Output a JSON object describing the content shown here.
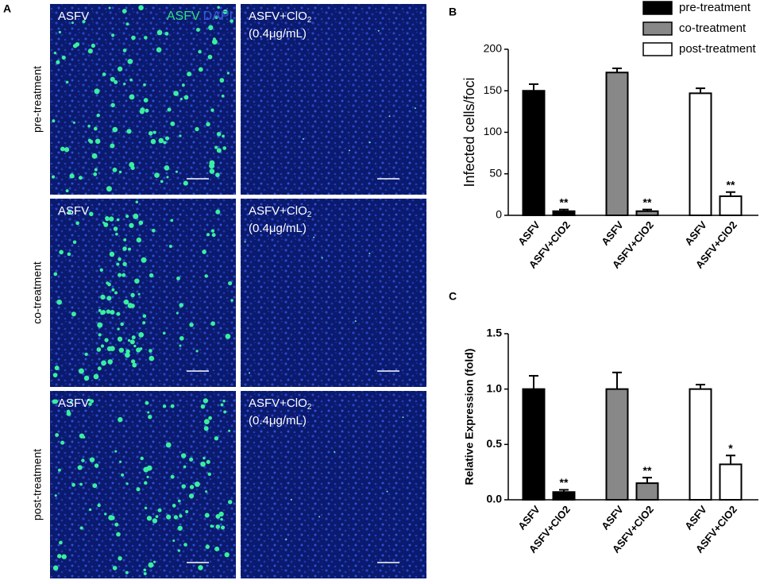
{
  "panel_a": {
    "label": "A",
    "stain_legend": [
      {
        "text": "ASFV",
        "color": "#2ee07a"
      },
      {
        "text": "DAPI",
        "color": "#3a5ad8"
      }
    ],
    "rows": [
      "pre-treatment",
      "co-treatment",
      "post-treatment"
    ],
    "images": [
      {
        "label": "ASFV",
        "infected": true
      },
      {
        "label": {
          "text": "ASFV+ClO",
          "subscript": "2"
        },
        "concentration": "(0.4μg/mL)",
        "infected": false
      },
      {
        "label": "ASFV",
        "infected": true
      },
      {
        "label": {
          "text": "ASFV+ClO",
          "subscript": "2"
        },
        "concentration": "(0.4μg/mL)",
        "infected": false
      },
      {
        "label": "ASFV",
        "infected": true
      },
      {
        "label": {
          "text": "ASFV+ClO",
          "subscript": "2"
        },
        "concentration": "(0.4μg/mL)",
        "infected": false
      }
    ]
  },
  "chart_data": [
    {
      "type": "bar",
      "panel_label": "B",
      "y_label": "Infected cells/foci",
      "categories": [
        "ASFV",
        "ASFV+ClO2"
      ],
      "series": [
        {
          "name": "pre-treatment",
          "color": "#000000",
          "values": [
            150,
            5
          ],
          "errors": [
            8,
            2
          ],
          "significance": [
            null,
            "**"
          ]
        },
        {
          "name": "co-treatment",
          "color": "#888888",
          "values": [
            172,
            5
          ],
          "errors": [
            5,
            2
          ],
          "significance": [
            null,
            "**"
          ]
        },
        {
          "name": "post-treatment",
          "color": "#ffffff",
          "values": [
            147,
            23
          ],
          "errors": [
            6,
            5
          ],
          "significance": [
            null,
            "**"
          ]
        }
      ],
      "ylim": [
        0,
        200
      ],
      "yticks": [
        0,
        50,
        100,
        150,
        200
      ],
      "legend": "top-right"
    },
    {
      "type": "bar",
      "panel_label": "C",
      "y_label": "Relative Expression (fold)",
      "categories": [
        "ASFV",
        "ASFV+ClO2"
      ],
      "series": [
        {
          "color": "#000000",
          "values": [
            1.0,
            0.07
          ],
          "errors": [
            0.12,
            0.02
          ],
          "significance": [
            null,
            "**"
          ]
        },
        {
          "color": "#888888",
          "values": [
            1.0,
            0.15
          ],
          "errors": [
            0.15,
            0.05
          ],
          "significance": [
            null,
            "**"
          ]
        },
        {
          "color": "#ffffff",
          "values": [
            1.0,
            0.32
          ],
          "errors": [
            0.04,
            0.08
          ],
          "significance": [
            null,
            "*"
          ]
        }
      ],
      "ylim": [
        0,
        1.5
      ],
      "yticks": [
        {
          "value": 0,
          "label": "0.0"
        },
        0.5,
        {
          "value": 1,
          "label": "1.0"
        },
        1.5
      ]
    }
  ]
}
